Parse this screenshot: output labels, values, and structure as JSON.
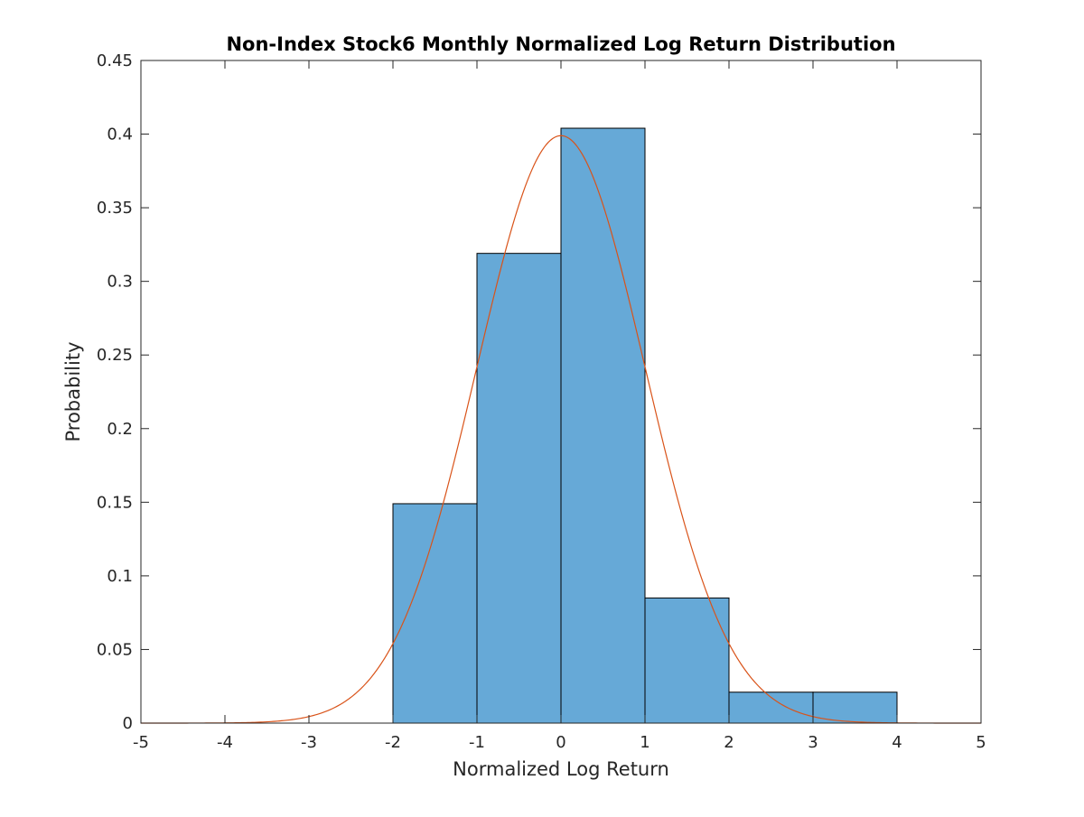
{
  "chart_data": {
    "type": "bar",
    "subtype": "histogram-with-normal-pdf",
    "title": "Non-Index Stock6 Monthly Normalized Log Return Distribution",
    "xlabel": "Normalized Log Return",
    "ylabel": "Probability",
    "xlim": [
      -5,
      5
    ],
    "ylim": [
      0,
      0.45
    ],
    "xticks": [
      -5,
      -4,
      -3,
      -2,
      -1,
      0,
      1,
      2,
      3,
      4,
      5
    ],
    "xtick_labels": [
      "-5",
      "-4",
      "-3",
      "-2",
      "-1",
      "0",
      "1",
      "2",
      "3",
      "4",
      "5"
    ],
    "yticks": [
      0,
      0.05,
      0.1,
      0.15,
      0.2,
      0.25,
      0.3,
      0.35,
      0.4,
      0.45
    ],
    "ytick_labels": [
      "0",
      "0.05",
      "0.1",
      "0.15",
      "0.2",
      "0.25",
      "0.3",
      "0.35",
      "0.4",
      "0.45"
    ],
    "grid": false,
    "bins": [
      {
        "x0": -2,
        "x1": -1,
        "value": 0.149
      },
      {
        "x0": -1,
        "x1": 0,
        "value": 0.319
      },
      {
        "x0": 0,
        "x1": 1,
        "value": 0.404
      },
      {
        "x0": 1,
        "x1": 2,
        "value": 0.085
      },
      {
        "x0": 2,
        "x1": 3,
        "value": 0.021
      },
      {
        "x0": 3,
        "x1": 4,
        "value": 0.021
      }
    ],
    "curve": {
      "type": "normal_pdf",
      "mean": 0,
      "std": 1
    },
    "colors": {
      "bar_fill": "#66a9d7",
      "bar_edge": "#000000",
      "curve": "#d95319",
      "axis": "#262626"
    }
  }
}
